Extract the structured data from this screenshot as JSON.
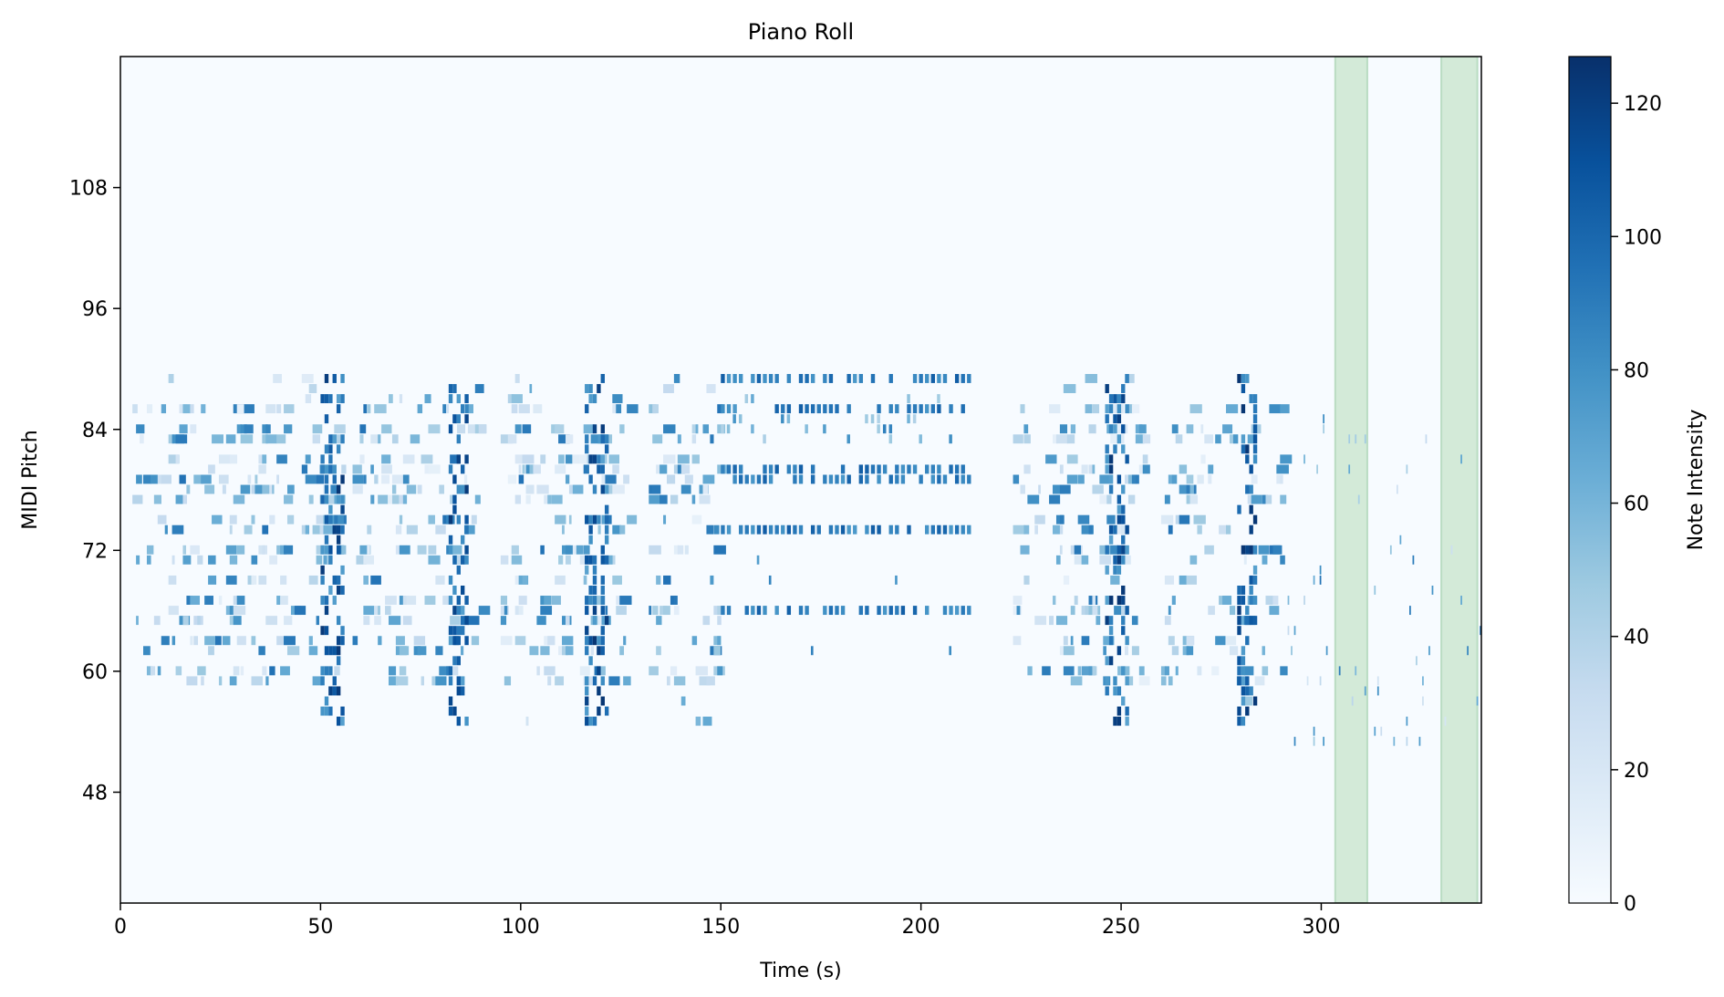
{
  "chart_data": {
    "type": "heatmap",
    "title": "Piano Roll",
    "xlabel": "Time (s)",
    "ylabel": "MIDI Pitch",
    "xlim": [
      0,
      340
    ],
    "ylim": [
      37,
      121
    ],
    "xticks": [
      0,
      50,
      100,
      150,
      200,
      250,
      300
    ],
    "yticks": [
      48,
      60,
      72,
      84,
      96,
      108
    ],
    "colorbar": {
      "label": "Note Intensity",
      "range": [
        0,
        127
      ],
      "ticks": [
        0,
        20,
        40,
        60,
        80,
        100,
        120
      ],
      "colormap": "Blues"
    },
    "highlight_regions": [
      [
        303.5,
        311.5
      ],
      [
        330,
        339
      ]
    ],
    "highlight_color": "#d3ead8",
    "background_color": "#f7fbff",
    "note_pattern_summary": "Dense note activity between pitch 53 and 89 from 2 s to 295 s, sparser notes until 340 s; strong (high intensity) vertical clusters near 52, 85, 120, 250 and 282 s; sustained repeated notes at pitches 66, 74, 79, 80, 86 and 89 between 150 and 212 s."
  }
}
